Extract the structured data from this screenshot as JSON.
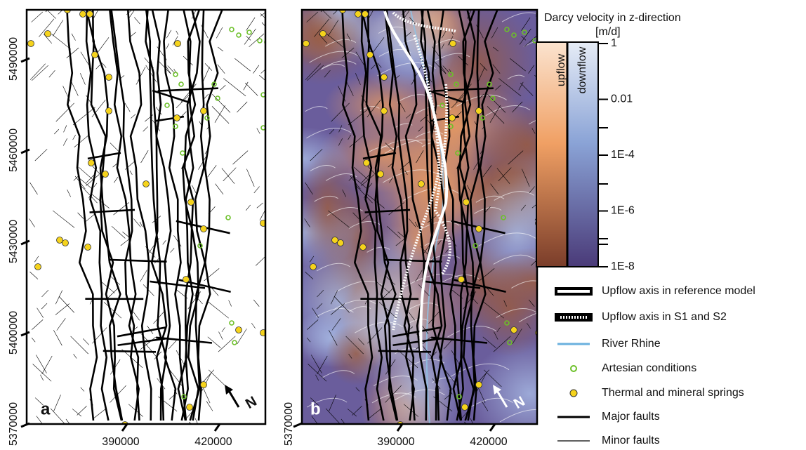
{
  "panels": [
    {
      "label": "a",
      "north": "N"
    },
    {
      "label": "b",
      "north": "N"
    }
  ],
  "axes": {
    "yticks": [
      5370000,
      5400000,
      5430000,
      5460000,
      5490000
    ],
    "xticks": [
      390000,
      420000
    ]
  },
  "colorbar": {
    "title": "Darcy velocity in z-direction",
    "unit": "[m/d]",
    "upflow_label": "upflow",
    "downflow_label": "downflow",
    "scale": "log",
    "range": [
      1e-08,
      1
    ],
    "ticks": [
      1,
      0.01,
      {
        "value": 0.0001,
        "label": "1E-4"
      },
      {
        "value": 1e-06,
        "label": "1E-6"
      },
      {
        "value": 1e-08,
        "label": "1E-8"
      }
    ]
  },
  "legend": [
    {
      "label": "Upflow axis in reference model"
    },
    {
      "label": "Upflow axis in S1 and S2"
    },
    {
      "label": "River Rhine"
    },
    {
      "label": "Artesian conditions"
    },
    {
      "label": "Thermal and mineral springs"
    },
    {
      "label": "Major faults"
    },
    {
      "label": "Minor faults"
    }
  ]
}
